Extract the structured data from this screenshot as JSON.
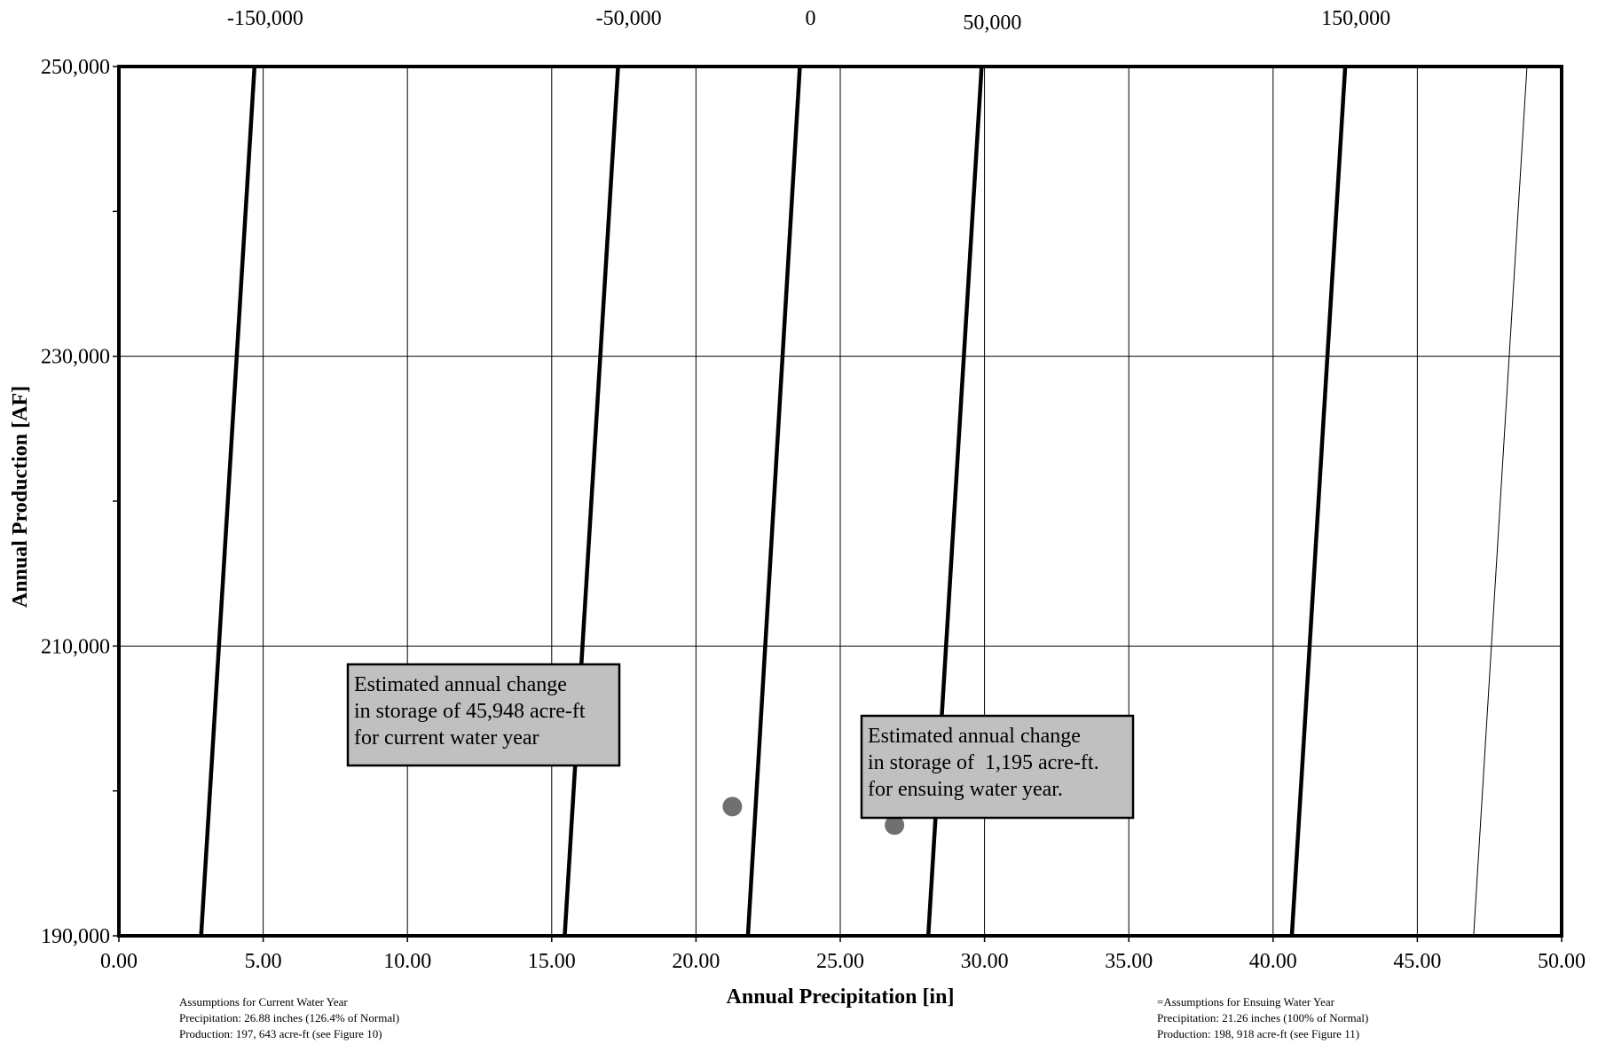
{
  "chart_data": {
    "type": "line",
    "title": "",
    "xlabel": "Annual Precipitation [in]",
    "ylabel": "Annual Production [AF]",
    "xlim": [
      0,
      50
    ],
    "ylim": [
      190000,
      250000
    ],
    "x_ticks": [
      "0.00",
      "5.00",
      "10.00",
      "15.00",
      "20.00",
      "25.00",
      "30.00",
      "35.00",
      "40.00",
      "45.00",
      "50.00"
    ],
    "x_tick_values": [
      0,
      5,
      10,
      15,
      20,
      25,
      30,
      35,
      40,
      45,
      50
    ],
    "y_ticks": [
      "190,000",
      "210,000",
      "230,000",
      "250,000"
    ],
    "y_tick_values": [
      190000,
      210000,
      230000,
      250000
    ],
    "y_minor_tick_values": [
      200000,
      220000,
      240000
    ],
    "grid": true,
    "storage_change_lines": [
      {
        "label": "-150,000",
        "bold": true,
        "points": [
          [
            2.85,
            190000
          ],
          [
            4.7,
            250000
          ]
        ]
      },
      {
        "label": "-50,000",
        "bold": true,
        "points": [
          [
            15.45,
            190000
          ],
          [
            17.3,
            250000
          ]
        ]
      },
      {
        "label": "0",
        "bold": true,
        "points": [
          [
            21.8,
            190000
          ],
          [
            23.6,
            250000
          ]
        ]
      },
      {
        "label": "50,000",
        "bold": true,
        "points": [
          [
            28.05,
            190000
          ],
          [
            29.9,
            250000
          ]
        ]
      },
      {
        "label": "150,000",
        "bold": true,
        "points": [
          [
            40.65,
            190000
          ],
          [
            42.5,
            250000
          ]
        ]
      },
      {
        "label": "",
        "bold": false,
        "points": [
          [
            46.95,
            190000
          ],
          [
            48.8,
            250000
          ]
        ]
      }
    ],
    "points": [
      {
        "name": "ensuing",
        "x": 21.26,
        "y": 198918
      },
      {
        "name": "current",
        "x": 26.88,
        "y": 197643
      }
    ],
    "annotations": [
      {
        "lines": [
          "Estimated annual change",
          "in storage of 45,948 acre-ft",
          "for current water year"
        ]
      },
      {
        "lines": [
          "Estimated annual change",
          "in storage of  1,195 acre-ft.",
          "for ensuing water year."
        ]
      }
    ],
    "colors": {
      "line": "#000000",
      "grid": "#000000",
      "point": "#707070",
      "box_fill": "#c0c0c0"
    }
  },
  "footnotes": {
    "current": {
      "line1": "Assumptions  for Current Water Year",
      "line2": "Precipitation: 26.88 inches (126.4% of Normal)",
      "line3": "Production: 197, 643  acre-ft  (see Figure 10)"
    },
    "ensuing": {
      "line1": "=Assumptions  for Ensuing Water Year",
      "line2": "Precipitation: 21.26 inches (100% of Normal)",
      "line3": "Production: 198, 918  acre-ft  (see Figure 11)"
    }
  }
}
